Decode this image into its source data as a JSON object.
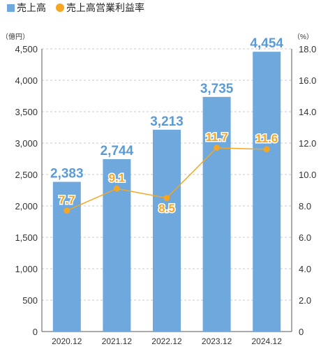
{
  "legend": {
    "sales_label": "売上高",
    "margin_label": "売上高営業利益率"
  },
  "units": {
    "left": "（億円）",
    "right": "（%）"
  },
  "colors": {
    "bar": "#6fa8dc",
    "bar_label": "#5b9bd5",
    "line": "#f5a623",
    "grid": "#c8c8c8",
    "axis": "#555555"
  },
  "chart_data": {
    "type": "bar",
    "categories": [
      "2020.12",
      "2021.12",
      "2022.12",
      "2023.12",
      "2024.12"
    ],
    "series": [
      {
        "name": "売上高",
        "type": "bar",
        "axis": "left",
        "values": [
          2383,
          2744,
          3213,
          3735,
          4454
        ],
        "labels": [
          "2,383",
          "2,744",
          "3,213",
          "3,735",
          "4,454"
        ]
      },
      {
        "name": "売上高営業利益率",
        "type": "line",
        "axis": "right",
        "values": [
          7.7,
          9.1,
          8.5,
          11.7,
          11.6
        ],
        "labels": [
          "7.7",
          "9.1",
          "8.5",
          "11.7",
          "11.6"
        ]
      }
    ],
    "y_left": {
      "range": [
        0,
        4500
      ],
      "ticks": [
        "0",
        "500",
        "1,000",
        "1,500",
        "2,000",
        "2,500",
        "3,000",
        "3,500",
        "4,000",
        "4,500"
      ]
    },
    "y_right": {
      "range": [
        0,
        18
      ],
      "ticks": [
        "0",
        "2.0",
        "4.0",
        "6.0",
        "8.0",
        "10.0",
        "12.0",
        "14.0",
        "16.0",
        "18.0"
      ]
    },
    "grid": true,
    "legend_position": "top-left"
  }
}
